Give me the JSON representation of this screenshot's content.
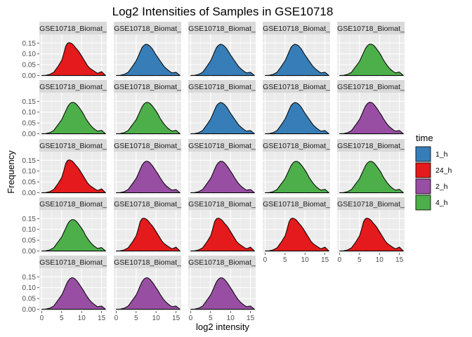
{
  "chart_data": {
    "type": "area",
    "title": "Log2 Intensities of Samples in GSE10718",
    "xlabel": "log2 intensity",
    "ylabel": "Frequency",
    "xlim": [
      -0.6,
      16.3
    ],
    "ylim": [
      -0.008,
      0.19
    ],
    "x_ticks": [
      0,
      5,
      10,
      15
    ],
    "x_tick_labels": [
      "0",
      "5",
      "10",
      "15"
    ],
    "y_ticks": [
      0.0,
      0.05,
      0.1,
      0.15
    ],
    "y_tick_labels": [
      "0.00",
      "0.05",
      "0.10",
      "0.15"
    ],
    "grid": true,
    "legend": {
      "title": "time",
      "placement": "right",
      "entries": [
        {
          "label": "1_h",
          "color": "#377EB8"
        },
        {
          "label": "24_h",
          "color": "#E41A1C"
        },
        {
          "label": "2_h",
          "color": "#984EA3"
        },
        {
          "label": "4_h",
          "color": "#4DAF4A"
        }
      ]
    },
    "density_x": [
      0,
      1,
      2,
      3,
      4,
      5,
      5.5,
      6,
      6.5,
      7,
      7.5,
      8,
      8.5,
      9,
      9.5,
      10,
      10.5,
      11,
      11.5,
      12,
      12.5,
      13,
      13.5,
      14,
      15,
      16
    ],
    "panels": [
      {
        "label": "GSE10718_Biomat_",
        "group": "24_h",
        "density": [
          0.0,
          0.001,
          0.005,
          0.015,
          0.04,
          0.07,
          0.1,
          0.135,
          0.15,
          0.152,
          0.148,
          0.14,
          0.128,
          0.118,
          0.105,
          0.09,
          0.075,
          0.06,
          0.045,
          0.035,
          0.028,
          0.022,
          0.016,
          0.01,
          0.018,
          0.0
        ]
      },
      {
        "label": "GSE10718_Biomat_",
        "group": "1_h",
        "density": [
          0.0,
          0.001,
          0.005,
          0.015,
          0.04,
          0.068,
          0.088,
          0.11,
          0.13,
          0.14,
          0.145,
          0.142,
          0.135,
          0.125,
          0.11,
          0.095,
          0.082,
          0.068,
          0.055,
          0.042,
          0.033,
          0.025,
          0.018,
          0.012,
          0.015,
          0.0
        ]
      },
      {
        "label": "GSE10718_Biomat_",
        "group": "1_h",
        "density": [
          0.0,
          0.001,
          0.005,
          0.015,
          0.04,
          0.068,
          0.088,
          0.11,
          0.13,
          0.14,
          0.145,
          0.142,
          0.135,
          0.125,
          0.11,
          0.095,
          0.082,
          0.068,
          0.055,
          0.042,
          0.033,
          0.025,
          0.018,
          0.012,
          0.015,
          0.0
        ]
      },
      {
        "label": "GSE10718_Biomat_",
        "group": "1_h",
        "density": [
          0.0,
          0.001,
          0.005,
          0.015,
          0.04,
          0.068,
          0.088,
          0.11,
          0.13,
          0.14,
          0.145,
          0.142,
          0.135,
          0.125,
          0.11,
          0.095,
          0.082,
          0.068,
          0.055,
          0.042,
          0.033,
          0.025,
          0.018,
          0.012,
          0.015,
          0.0
        ]
      },
      {
        "label": "GSE10718_Biomat_",
        "group": "4_h",
        "density": [
          0.0,
          0.001,
          0.005,
          0.015,
          0.04,
          0.065,
          0.085,
          0.105,
          0.125,
          0.138,
          0.145,
          0.145,
          0.14,
          0.13,
          0.118,
          0.105,
          0.09,
          0.072,
          0.058,
          0.045,
          0.034,
          0.025,
          0.018,
          0.012,
          0.016,
          0.0
        ]
      },
      {
        "label": "GSE10718_Biomat_",
        "group": "4_h",
        "density": [
          0.0,
          0.001,
          0.005,
          0.015,
          0.04,
          0.065,
          0.085,
          0.105,
          0.125,
          0.138,
          0.145,
          0.145,
          0.14,
          0.13,
          0.118,
          0.105,
          0.09,
          0.072,
          0.058,
          0.045,
          0.034,
          0.025,
          0.018,
          0.012,
          0.016,
          0.0
        ]
      },
      {
        "label": "GSE10718_Biomat_",
        "group": "4_h",
        "density": [
          0.0,
          0.001,
          0.005,
          0.015,
          0.04,
          0.065,
          0.085,
          0.105,
          0.125,
          0.138,
          0.145,
          0.145,
          0.14,
          0.13,
          0.118,
          0.105,
          0.09,
          0.072,
          0.058,
          0.045,
          0.034,
          0.025,
          0.018,
          0.012,
          0.016,
          0.0
        ]
      },
      {
        "label": "GSE10718_Biomat_",
        "group": "1_h",
        "density": [
          0.0,
          0.001,
          0.005,
          0.015,
          0.04,
          0.068,
          0.088,
          0.11,
          0.13,
          0.14,
          0.145,
          0.142,
          0.135,
          0.125,
          0.11,
          0.095,
          0.082,
          0.068,
          0.055,
          0.042,
          0.033,
          0.025,
          0.018,
          0.012,
          0.015,
          0.0
        ]
      },
      {
        "label": "GSE10718_Biomat_",
        "group": "1_h",
        "density": [
          0.0,
          0.001,
          0.005,
          0.015,
          0.04,
          0.068,
          0.088,
          0.11,
          0.13,
          0.14,
          0.145,
          0.142,
          0.135,
          0.125,
          0.11,
          0.095,
          0.082,
          0.068,
          0.055,
          0.042,
          0.033,
          0.025,
          0.018,
          0.012,
          0.015,
          0.0
        ]
      },
      {
        "label": "GSE10718_Biomat_",
        "group": "2_h",
        "density": [
          0.0,
          0.001,
          0.005,
          0.015,
          0.04,
          0.066,
          0.086,
          0.108,
          0.128,
          0.14,
          0.146,
          0.145,
          0.138,
          0.127,
          0.114,
          0.1,
          0.086,
          0.07,
          0.056,
          0.043,
          0.033,
          0.025,
          0.018,
          0.012,
          0.015,
          0.0
        ]
      },
      {
        "label": "GSE10718_Biomat_",
        "group": "24_h",
        "density": [
          0.0,
          0.001,
          0.005,
          0.015,
          0.04,
          0.07,
          0.1,
          0.135,
          0.15,
          0.152,
          0.148,
          0.14,
          0.128,
          0.118,
          0.105,
          0.09,
          0.075,
          0.06,
          0.045,
          0.035,
          0.028,
          0.022,
          0.016,
          0.01,
          0.018,
          0.0
        ]
      },
      {
        "label": "GSE10718_Biomat_",
        "group": "2_h",
        "density": [
          0.0,
          0.001,
          0.005,
          0.015,
          0.04,
          0.066,
          0.086,
          0.108,
          0.128,
          0.14,
          0.146,
          0.145,
          0.138,
          0.127,
          0.114,
          0.1,
          0.086,
          0.07,
          0.056,
          0.043,
          0.033,
          0.025,
          0.018,
          0.012,
          0.015,
          0.0
        ]
      },
      {
        "label": "GSE10718_Biomat_",
        "group": "2_h",
        "density": [
          0.0,
          0.001,
          0.005,
          0.015,
          0.04,
          0.066,
          0.086,
          0.108,
          0.128,
          0.14,
          0.146,
          0.145,
          0.138,
          0.127,
          0.114,
          0.1,
          0.086,
          0.07,
          0.056,
          0.043,
          0.033,
          0.025,
          0.018,
          0.012,
          0.015,
          0.0
        ]
      },
      {
        "label": "GSE10718_Biomat_",
        "group": "4_h",
        "density": [
          0.0,
          0.001,
          0.005,
          0.015,
          0.04,
          0.065,
          0.085,
          0.105,
          0.125,
          0.138,
          0.145,
          0.145,
          0.14,
          0.13,
          0.118,
          0.105,
          0.09,
          0.072,
          0.058,
          0.045,
          0.034,
          0.025,
          0.018,
          0.012,
          0.016,
          0.0
        ]
      },
      {
        "label": "GSE10718_Biomat_",
        "group": "4_h",
        "density": [
          0.0,
          0.001,
          0.005,
          0.015,
          0.04,
          0.065,
          0.085,
          0.105,
          0.125,
          0.138,
          0.145,
          0.145,
          0.14,
          0.13,
          0.118,
          0.105,
          0.09,
          0.072,
          0.058,
          0.045,
          0.034,
          0.025,
          0.018,
          0.012,
          0.016,
          0.0
        ]
      },
      {
        "label": "GSE10718_Biomat_",
        "group": "4_h",
        "density": [
          0.0,
          0.001,
          0.005,
          0.015,
          0.04,
          0.065,
          0.085,
          0.105,
          0.125,
          0.138,
          0.145,
          0.145,
          0.14,
          0.13,
          0.118,
          0.105,
          0.09,
          0.072,
          0.058,
          0.045,
          0.034,
          0.025,
          0.018,
          0.012,
          0.016,
          0.0
        ]
      },
      {
        "label": "GSE10718_Biomat_",
        "group": "24_h",
        "density": [
          0.0,
          0.001,
          0.005,
          0.015,
          0.04,
          0.07,
          0.1,
          0.135,
          0.15,
          0.152,
          0.148,
          0.14,
          0.128,
          0.118,
          0.105,
          0.09,
          0.075,
          0.06,
          0.045,
          0.035,
          0.028,
          0.022,
          0.016,
          0.01,
          0.018,
          0.0
        ]
      },
      {
        "label": "GSE10718_Biomat_",
        "group": "24_h",
        "density": [
          0.0,
          0.001,
          0.005,
          0.015,
          0.04,
          0.07,
          0.1,
          0.135,
          0.15,
          0.152,
          0.148,
          0.14,
          0.128,
          0.118,
          0.105,
          0.09,
          0.075,
          0.06,
          0.045,
          0.035,
          0.028,
          0.022,
          0.016,
          0.01,
          0.018,
          0.0
        ]
      },
      {
        "label": "GSE10718_Biomat_",
        "group": "24_h",
        "density": [
          0.0,
          0.001,
          0.005,
          0.015,
          0.04,
          0.07,
          0.1,
          0.135,
          0.15,
          0.152,
          0.148,
          0.14,
          0.128,
          0.118,
          0.105,
          0.09,
          0.075,
          0.06,
          0.045,
          0.035,
          0.028,
          0.022,
          0.016,
          0.01,
          0.018,
          0.0
        ]
      },
      {
        "label": "GSE10718_Biomat_",
        "group": "24_h",
        "density": [
          0.0,
          0.001,
          0.005,
          0.015,
          0.04,
          0.07,
          0.1,
          0.135,
          0.15,
          0.152,
          0.148,
          0.14,
          0.128,
          0.118,
          0.105,
          0.09,
          0.075,
          0.06,
          0.045,
          0.035,
          0.028,
          0.022,
          0.016,
          0.01,
          0.018,
          0.0
        ]
      },
      {
        "label": "GSE10718_Biomat_",
        "group": "2_h",
        "density": [
          0.0,
          0.001,
          0.005,
          0.015,
          0.04,
          0.066,
          0.086,
          0.108,
          0.128,
          0.14,
          0.146,
          0.145,
          0.138,
          0.127,
          0.114,
          0.1,
          0.086,
          0.07,
          0.056,
          0.043,
          0.033,
          0.025,
          0.018,
          0.012,
          0.015,
          0.0
        ]
      },
      {
        "label": "GSE10718_Biomat_",
        "group": "2_h",
        "density": [
          0.0,
          0.001,
          0.005,
          0.015,
          0.04,
          0.066,
          0.086,
          0.108,
          0.128,
          0.14,
          0.146,
          0.145,
          0.138,
          0.127,
          0.114,
          0.1,
          0.086,
          0.07,
          0.056,
          0.043,
          0.033,
          0.025,
          0.018,
          0.012,
          0.015,
          0.0
        ]
      },
      {
        "label": "GSE10718_Biomat_",
        "group": "2_h",
        "density": [
          0.0,
          0.001,
          0.005,
          0.015,
          0.04,
          0.066,
          0.086,
          0.108,
          0.128,
          0.14,
          0.146,
          0.145,
          0.138,
          0.127,
          0.114,
          0.1,
          0.086,
          0.07,
          0.056,
          0.043,
          0.033,
          0.025,
          0.018,
          0.012,
          0.015,
          0.0
        ]
      }
    ]
  }
}
